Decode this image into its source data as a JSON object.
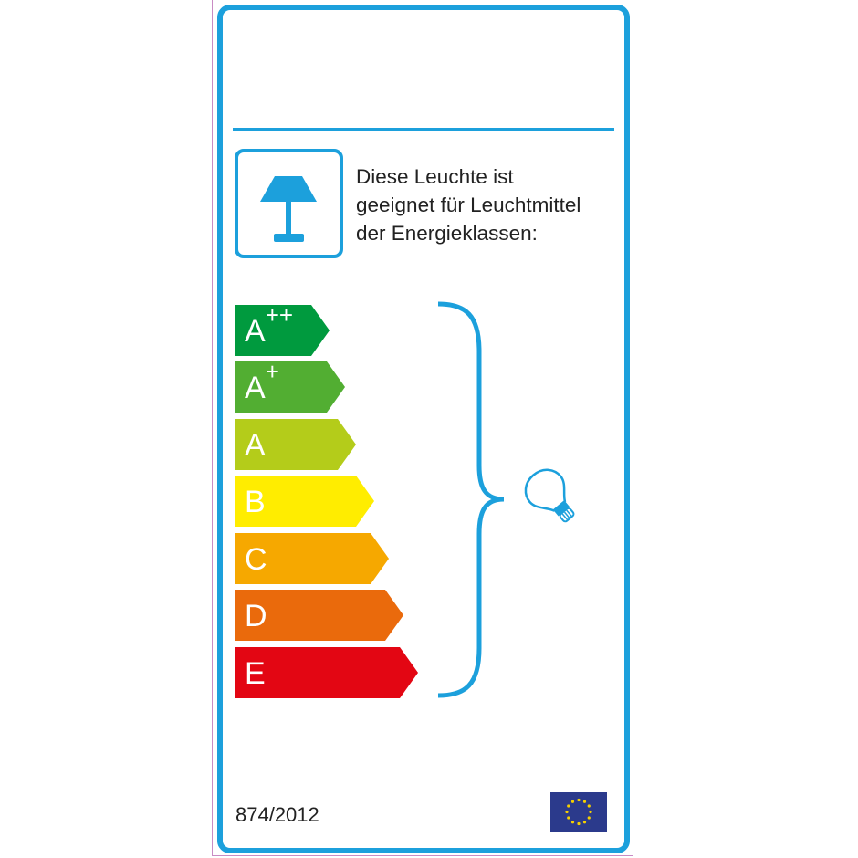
{
  "label": {
    "description_lines": [
      "Diese Leuchte ist",
      "geeignet für Leuchtmittel",
      "der Energieklassen:"
    ],
    "regulation": "874/2012",
    "icons": {
      "lamp": "table-lamp-icon",
      "bulb": "light-bulb-icon",
      "flag": "eu-flag-icon"
    },
    "accent_color": "#1ca0dc",
    "classes": [
      {
        "letter": "A",
        "sup": "++",
        "color": "#009a3e"
      },
      {
        "letter": "A",
        "sup": "+",
        "color": "#52ae32"
      },
      {
        "letter": "A",
        "sup": "",
        "color": "#b4cc1a"
      },
      {
        "letter": "B",
        "sup": "",
        "color": "#ffed00"
      },
      {
        "letter": "C",
        "sup": "",
        "color": "#f6a800"
      },
      {
        "letter": "D",
        "sup": "",
        "color": "#ea6a0c"
      },
      {
        "letter": "E",
        "sup": "",
        "color": "#e30613"
      }
    ]
  }
}
